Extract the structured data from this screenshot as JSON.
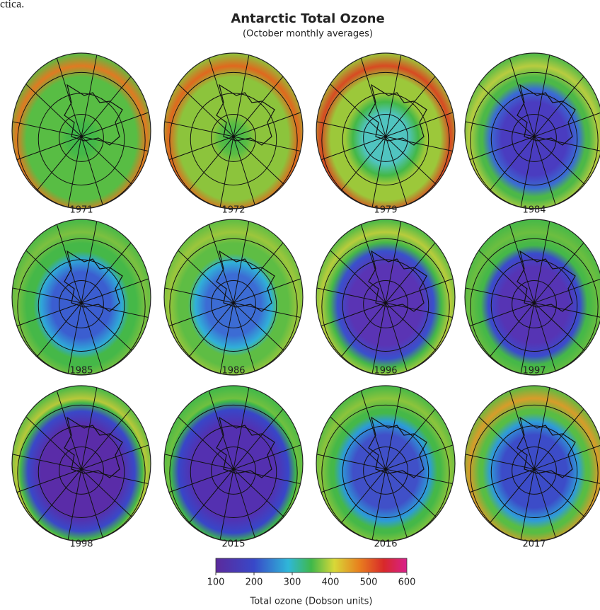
{
  "cropped_text": "ctica.",
  "header": {
    "title": "Antarctic Total Ozone",
    "subtitle": "(October monthly averages)"
  },
  "maps": [
    {
      "year": "1971"
    },
    {
      "year": "1972"
    },
    {
      "year": "1979"
    },
    {
      "year": "1984"
    },
    {
      "year": "1985"
    },
    {
      "year": "1986"
    },
    {
      "year": "1996"
    },
    {
      "year": "1997"
    },
    {
      "year": "1998"
    },
    {
      "year": "2015"
    },
    {
      "year": "2016"
    },
    {
      "year": "2017"
    }
  ],
  "colorbar": {
    "lim": [
      100,
      600
    ],
    "ticks": [
      100,
      200,
      300,
      400,
      500,
      600
    ],
    "label": "Total ozone (Dobson units)"
  }
}
